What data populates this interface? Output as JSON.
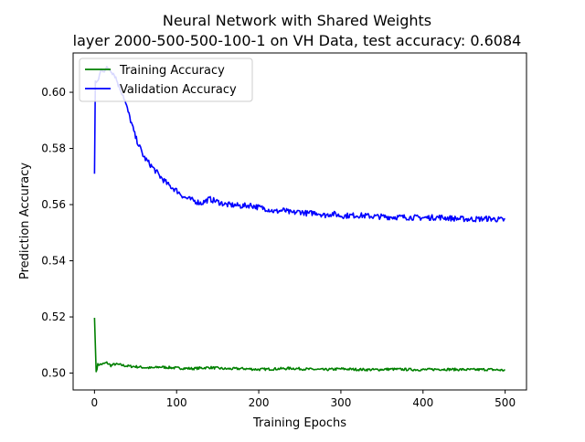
{
  "chart_data": {
    "type": "line",
    "title": "Neural Network with Shared Weights",
    "subtitle": "layer 2000-500-500-100-1 on VH Data, test accuracy: 0.6084",
    "xlabel": "Training Epochs",
    "ylabel": "Prediction Accuracy",
    "xlim": [
      -26,
      526
    ],
    "ylim": [
      0.494,
      0.614
    ],
    "xticks": [
      0,
      100,
      200,
      300,
      400,
      500
    ],
    "yticks": [
      0.5,
      0.52,
      0.54,
      0.56,
      0.58,
      0.6
    ],
    "xtick_labels": [
      "0",
      "100",
      "200",
      "300",
      "400",
      "500"
    ],
    "ytick_labels": [
      "0.50",
      "0.52",
      "0.54",
      "0.56",
      "0.58",
      "0.60"
    ],
    "grid": false,
    "legend_position": "upper left",
    "series": [
      {
        "name": "Training Accuracy",
        "color": "#008000",
        "x": [
          0,
          2,
          4,
          10,
          15,
          20,
          25,
          30,
          40,
          50,
          60,
          70,
          80,
          90,
          100,
          120,
          140,
          160,
          180,
          200,
          220,
          240,
          260,
          280,
          300,
          320,
          340,
          360,
          380,
          400,
          420,
          440,
          460,
          480,
          500
        ],
        "values": [
          0.5197,
          0.5005,
          0.503,
          0.5032,
          0.5037,
          0.5027,
          0.5032,
          0.503,
          0.5025,
          0.5023,
          0.502,
          0.5018,
          0.5022,
          0.502,
          0.5018,
          0.5016,
          0.502,
          0.5015,
          0.5016,
          0.5013,
          0.5015,
          0.5017,
          0.5014,
          0.5012,
          0.5015,
          0.5013,
          0.5012,
          0.5014,
          0.5013,
          0.5012,
          0.5014,
          0.5013,
          0.5012,
          0.5013,
          0.501
        ]
      },
      {
        "name": "Validation Accuracy",
        "color": "#0000ff",
        "x": [
          0,
          1,
          3,
          5,
          8,
          12,
          16,
          20,
          25,
          30,
          35,
          40,
          45,
          50,
          60,
          70,
          80,
          90,
          100,
          110,
          120,
          130,
          140,
          150,
          160,
          170,
          180,
          190,
          200,
          210,
          220,
          230,
          240,
          250,
          260,
          270,
          280,
          290,
          300,
          320,
          340,
          360,
          380,
          400,
          420,
          440,
          460,
          480,
          500
        ],
        "values": [
          0.571,
          0.604,
          0.603,
          0.605,
          0.608,
          0.608,
          0.6085,
          0.608,
          0.606,
          0.602,
          0.599,
          0.594,
          0.589,
          0.584,
          0.577,
          0.5735,
          0.57,
          0.567,
          0.565,
          0.5625,
          0.5615,
          0.5605,
          0.562,
          0.561,
          0.56,
          0.5598,
          0.5595,
          0.5598,
          0.559,
          0.5585,
          0.5575,
          0.558,
          0.557,
          0.5575,
          0.5568,
          0.5572,
          0.5562,
          0.5568,
          0.556,
          0.5562,
          0.5558,
          0.5556,
          0.5555,
          0.5553,
          0.5555,
          0.555,
          0.5548,
          0.555,
          0.5545
        ]
      }
    ]
  }
}
